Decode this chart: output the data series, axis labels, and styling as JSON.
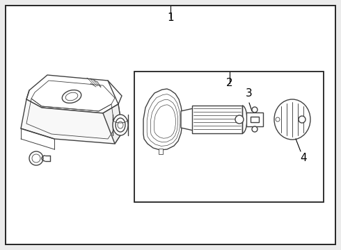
{
  "bg": "#ebebeb",
  "white": "#ffffff",
  "lc": "#404040",
  "bc": "#2a2a2a",
  "fs": 10,
  "lw": 1.0,
  "lw_thin": 0.6,
  "label_1": "1",
  "label_2": "2",
  "label_3": "3",
  "label_4": "4"
}
